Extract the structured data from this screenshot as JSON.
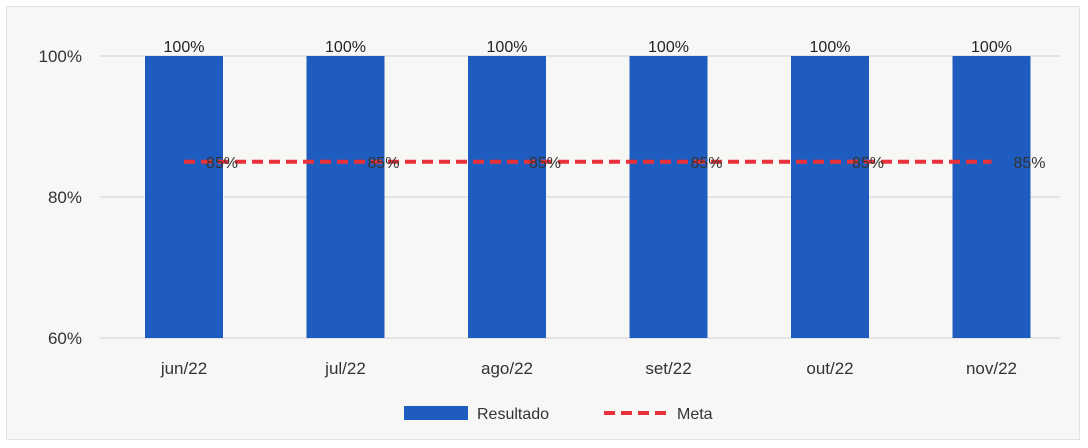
{
  "chart_data": {
    "type": "bar",
    "categories": [
      "jun/22",
      "jul/22",
      "ago/22",
      "set/22",
      "out/22",
      "nov/22"
    ],
    "series": [
      {
        "name": "Resultado",
        "type": "bar",
        "values": [
          100,
          100,
          100,
          100,
          100,
          100
        ],
        "labels": [
          "100%",
          "100%",
          "100%",
          "100%",
          "100%",
          "100%"
        ],
        "color": "#1f5cbf"
      },
      {
        "name": "Meta",
        "type": "line",
        "style": "dashed",
        "values": [
          85,
          85,
          85,
          85,
          85,
          85
        ],
        "labels": [
          "85%",
          "85%",
          "85%",
          "85%",
          "85%",
          "85%"
        ],
        "color": "#e8313a"
      }
    ],
    "yticks": [
      "60%",
      "80%",
      "100%"
    ],
    "ytick_values": [
      60,
      80,
      100
    ],
    "ylim": [
      60,
      100
    ],
    "grid": true,
    "legend_position": "bottom"
  }
}
